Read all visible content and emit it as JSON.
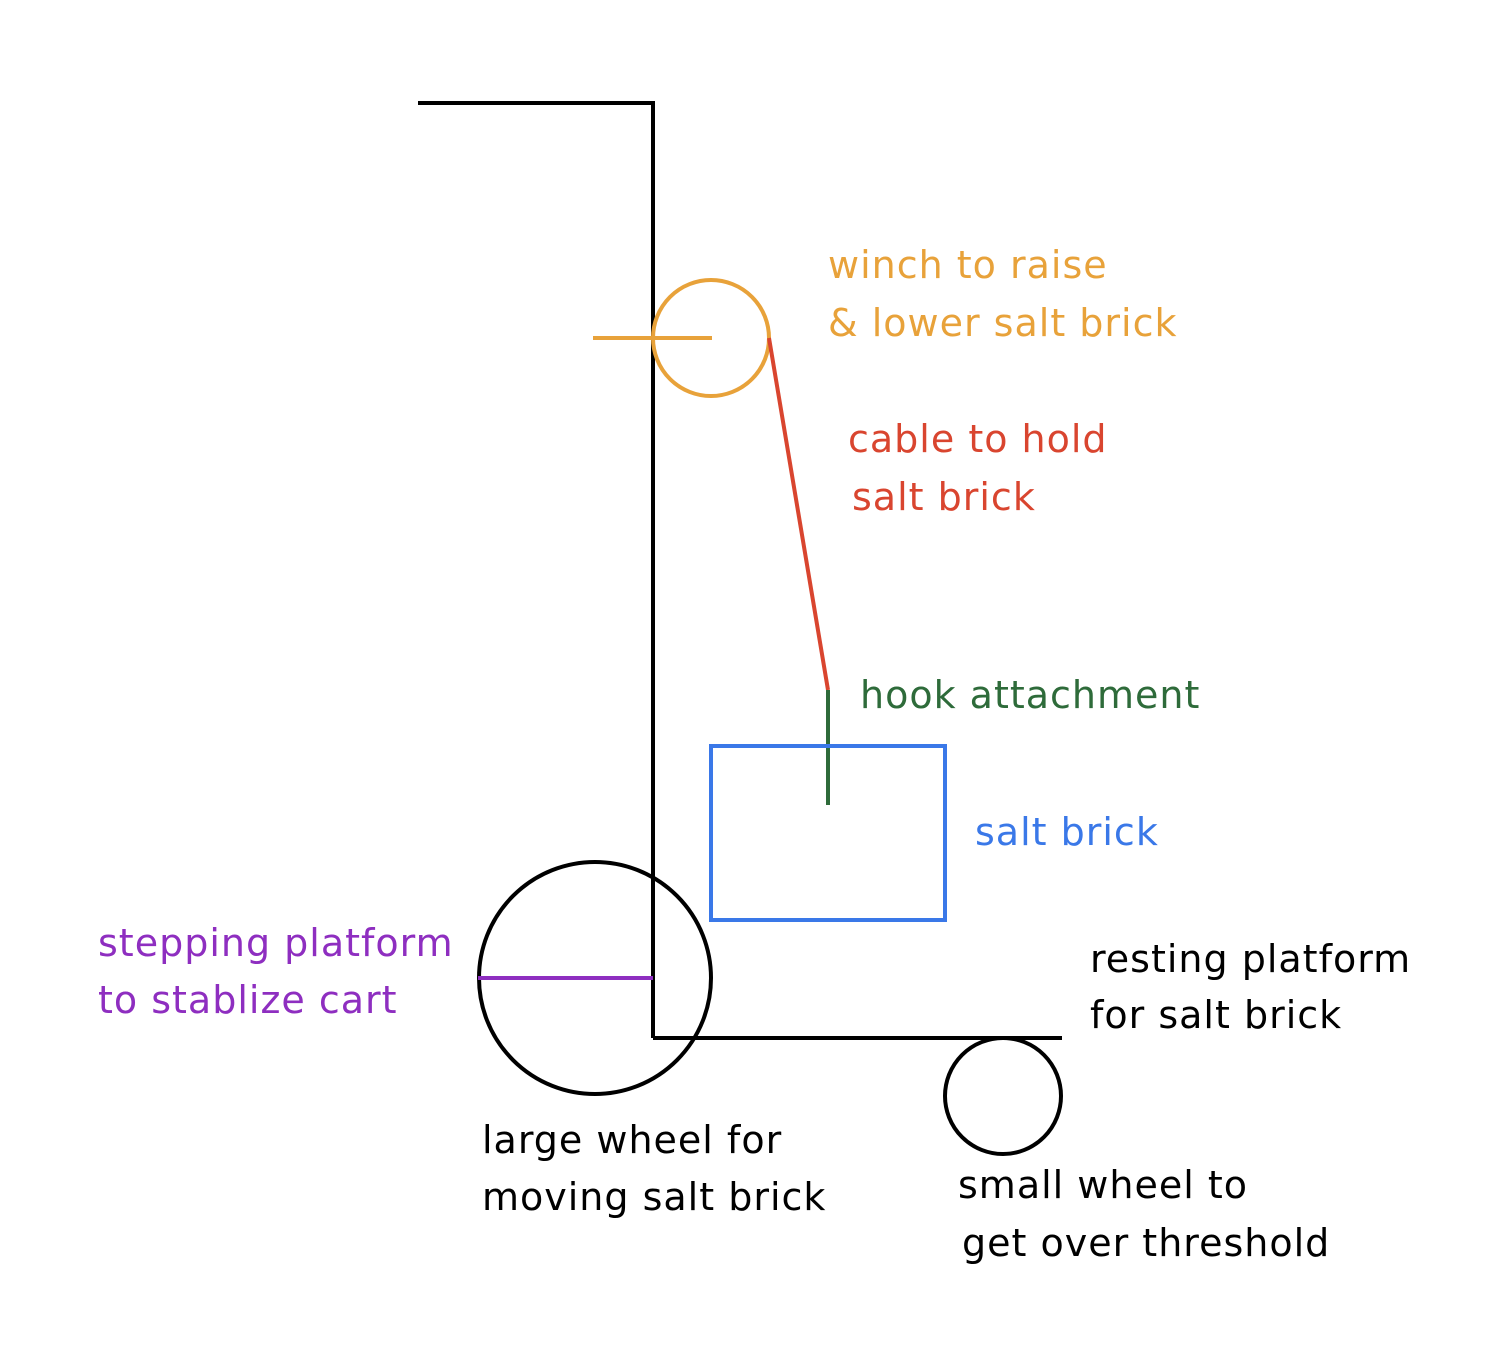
{
  "colors": {
    "frame": "#000000",
    "winch": "#E8A23A",
    "cable": "#D9452F",
    "hook": "#2E6B3A",
    "brick": "#3A78E8",
    "stepping": "#8E2EC0",
    "text_black": "#000000"
  },
  "labels": {
    "winch": [
      "winch to raise",
      "& lower salt brick"
    ],
    "cable": [
      "cable to hold",
      "salt brick"
    ],
    "hook": [
      "hook attachment"
    ],
    "brick": [
      "salt brick"
    ],
    "stepping": [
      "stepping platform",
      "to stablize cart"
    ],
    "resting": [
      "resting platform",
      "for salt brick"
    ],
    "large_wheel": [
      "large wheel for",
      "moving salt brick"
    ],
    "small_wheel": [
      "small wheel to",
      "get over threshold"
    ]
  }
}
